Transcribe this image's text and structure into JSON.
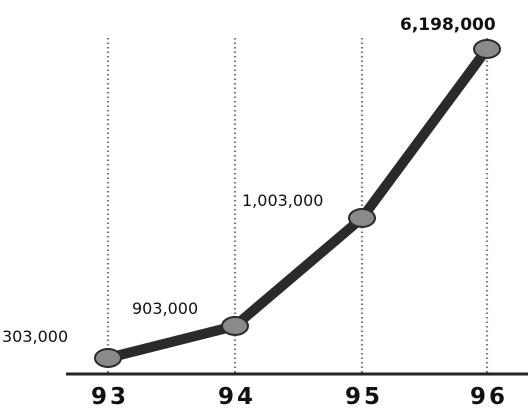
{
  "chart_data": {
    "type": "line",
    "title": "",
    "xlabel": "",
    "ylabel": "",
    "categories": [
      "93",
      "94",
      "95",
      "96"
    ],
    "series": [
      {
        "values": [
          303000,
          903000,
          1003000,
          6198000
        ],
        "data_labels": [
          "303,000",
          "903,000",
          "1,003,000",
          "6,198,000"
        ]
      }
    ],
    "grid": "vertical dotted lines at each category",
    "legend": "none",
    "colors": {
      "line": "#2a2a2a",
      "marker": "#8a8a8a",
      "grid": "#777777",
      "axis": "#222222"
    }
  }
}
